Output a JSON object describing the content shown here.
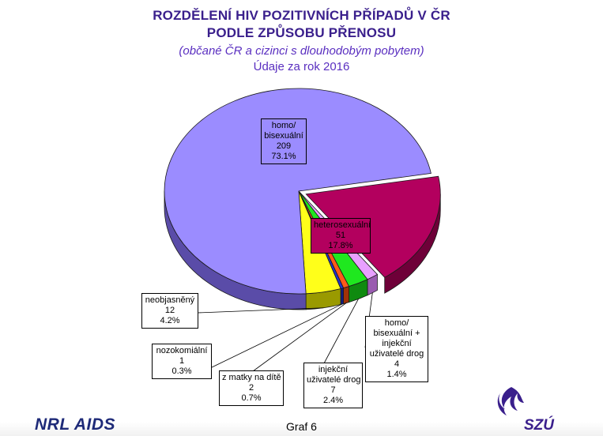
{
  "header": {
    "title_line1": "ROZDĚLENÍ HIV POZITIVNÍCH PŘÍPADŮ V ČR",
    "title_line2": "PODLE ZPŮSOBU PŘENOSU",
    "subtitle": "(občané ČR a cizinci s dlouhodobým pobytem)",
    "year_line": "Údaje za rok 2016"
  },
  "chart_data": {
    "type": "pie",
    "title": "ROZDĚLENÍ HIV POZITIVNÍCH PŘÍPADŮ V ČR PODLE ZPŮSOBU PŘENOSU",
    "slices": [
      {
        "name": "heterosexuální",
        "label_lines": [
          "heterosexuální"
        ],
        "value": 51,
        "percent": "17.8%",
        "color": "#b3005e",
        "side_color": "#6e0038"
      },
      {
        "name": "homo/ bisexuální + injekční uživatelé drog",
        "label_lines": [
          "homo/",
          "bisexuální +",
          "injekční",
          "uživatelé drog"
        ],
        "value": 4,
        "percent": "1.4%",
        "color": "#e8a0ff",
        "side_color": "#9a5cb0"
      },
      {
        "name": "injekční uživatelé drog",
        "label_lines": [
          "injekční",
          "uživatelé drog"
        ],
        "value": 7,
        "percent": "2.4%",
        "color": "#1fe81f",
        "side_color": "#0f8a0f"
      },
      {
        "name": "z matky na dítě",
        "label_lines": [
          "z matky na dítě"
        ],
        "value": 2,
        "percent": "0.7%",
        "color": "#ff5a1a",
        "side_color": "#a13208"
      },
      {
        "name": "nozokomiální",
        "label_lines": [
          "nozokomiální"
        ],
        "value": 1,
        "percent": "0.3%",
        "color": "#2233cc",
        "side_color": "#121c80"
      },
      {
        "name": "neobjasněný",
        "label_lines": [
          "neobjasněný"
        ],
        "value": 12,
        "percent": "4.2%",
        "color": "#ffff1a",
        "side_color": "#9a9a00"
      },
      {
        "name": "homo/ bisexuální",
        "label_lines": [
          "homo/",
          "bisexuální"
        ],
        "value": 209,
        "percent": "73.1%",
        "color": "#9b8cff",
        "side_color": "#5a4ca8"
      }
    ]
  },
  "footer": {
    "left_text": "NRL AIDS",
    "center_text": "Graf 6",
    "logo_text": "SZÚ"
  }
}
